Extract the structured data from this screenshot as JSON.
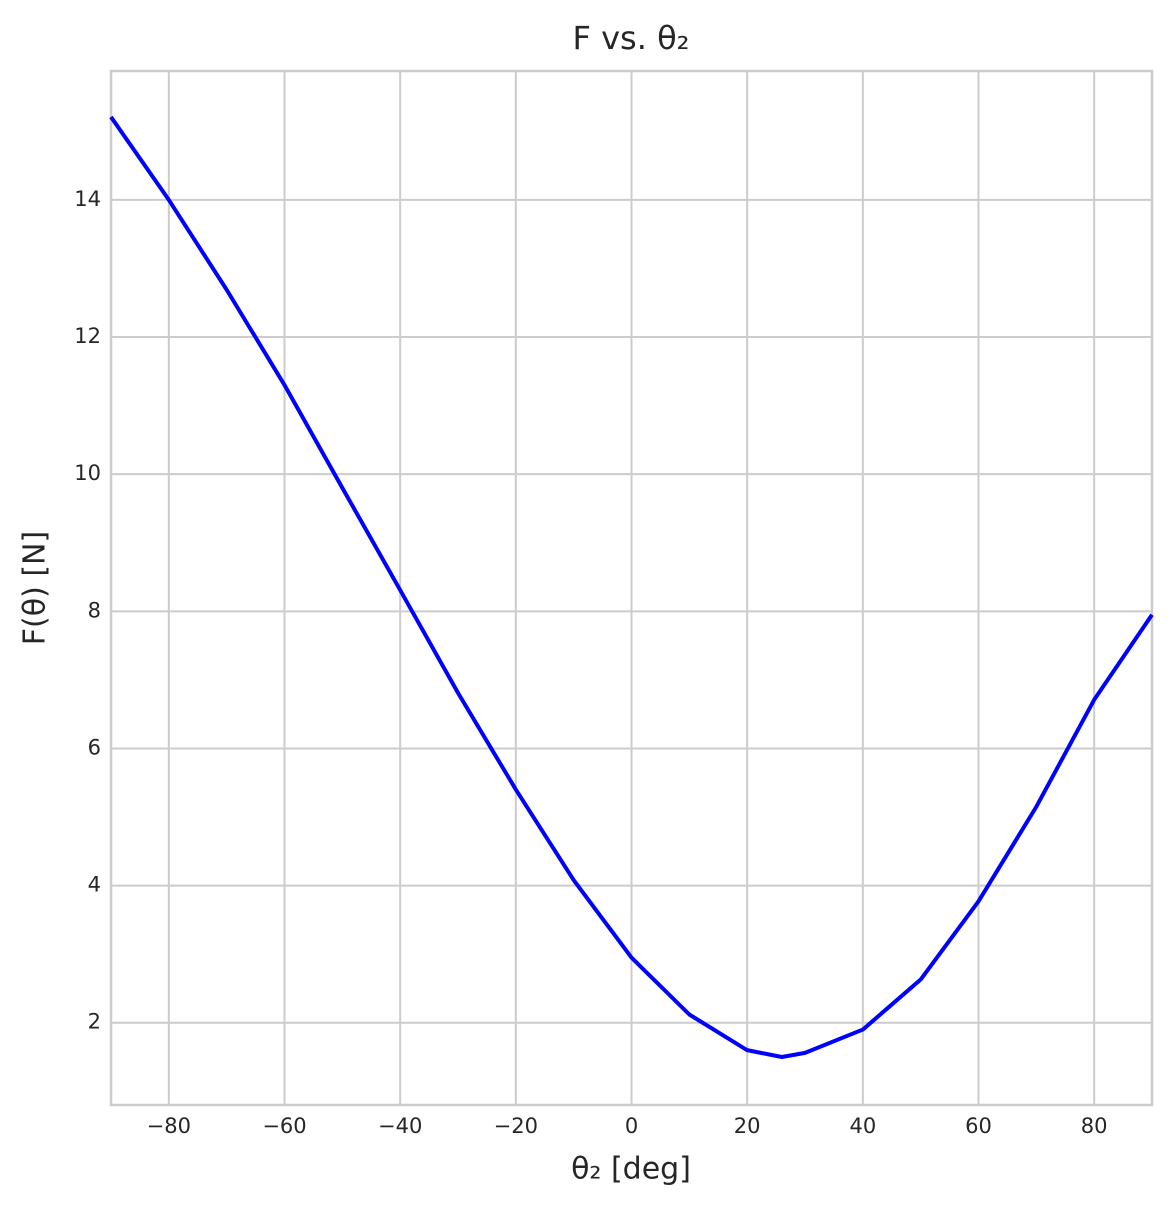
{
  "chart_data": {
    "type": "line",
    "title": "F vs. θ₂",
    "x_label": "θ₂ [deg]",
    "y_label": "F(θ) [N]",
    "x": [
      -90,
      -80,
      -70,
      -60,
      -50,
      -40,
      -30,
      -20,
      -10,
      0,
      10,
      20,
      26,
      30,
      40,
      50,
      60,
      70,
      80,
      90
    ],
    "series": [
      {
        "name": "F(θ)",
        "color": "#0000ff",
        "values": [
          15.21,
          14.0,
          12.69,
          11.3,
          9.8,
          8.31,
          6.81,
          5.4,
          4.08,
          2.95,
          2.12,
          1.6,
          1.5,
          1.56,
          1.9,
          2.63,
          3.77,
          5.15,
          6.71,
          7.95
        ]
      }
    ],
    "xlim": [
      -90,
      90
    ],
    "xticks": [
      {
        "value": -80,
        "label": "−80"
      },
      {
        "value": -60,
        "label": "−60"
      },
      {
        "value": -40,
        "label": "−40"
      },
      {
        "value": -20,
        "label": "−20"
      },
      0,
      20,
      40,
      60,
      80
    ],
    "ylim": [
      0.8,
      15.88
    ],
    "yticks": [
      2,
      4,
      6,
      8,
      10,
      12,
      14
    ],
    "grid": true
  }
}
